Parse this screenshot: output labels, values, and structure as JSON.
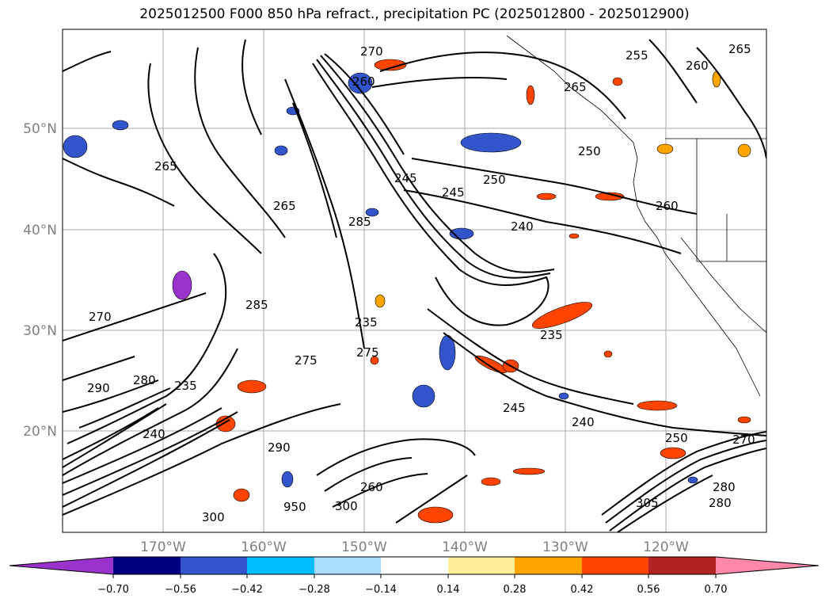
{
  "title": "2025012500 F000 850 hPa refract., precipitation PC (2025012800 - 2025012900)",
  "map": {
    "lat_labels": [
      "50°N",
      "40°N",
      "30°N",
      "20°N"
    ],
    "lon_labels": [
      "170°W",
      "160°W",
      "150°W",
      "140°W",
      "130°W",
      "120°W"
    ],
    "contour_labels": [
      "270",
      "260",
      "265",
      "255",
      "260",
      "265",
      "250",
      "245",
      "245",
      "250",
      "240",
      "260",
      "265",
      "265",
      "285",
      "270",
      "235",
      "280",
      "290",
      "235",
      "240",
      "275",
      "275",
      "285",
      "235",
      "245",
      "240",
      "250",
      "290",
      "280",
      "260",
      "300",
      "300",
      "950",
      "305",
      "280",
      "270"
    ]
  },
  "colorbar": {
    "ticks": [
      "−0.70",
      "−0.56",
      "−0.42",
      "−0.28",
      "−0.14",
      "0.14",
      "0.28",
      "0.42",
      "0.56",
      "0.70"
    ],
    "colors": [
      "#9933cc",
      "#000080",
      "#3355cc",
      "#00bbff",
      "#aaddff",
      "#ffffff",
      "#ffee99",
      "#ffa500",
      "#ff4400",
      "#b22222",
      "#ff88aa"
    ]
  }
}
